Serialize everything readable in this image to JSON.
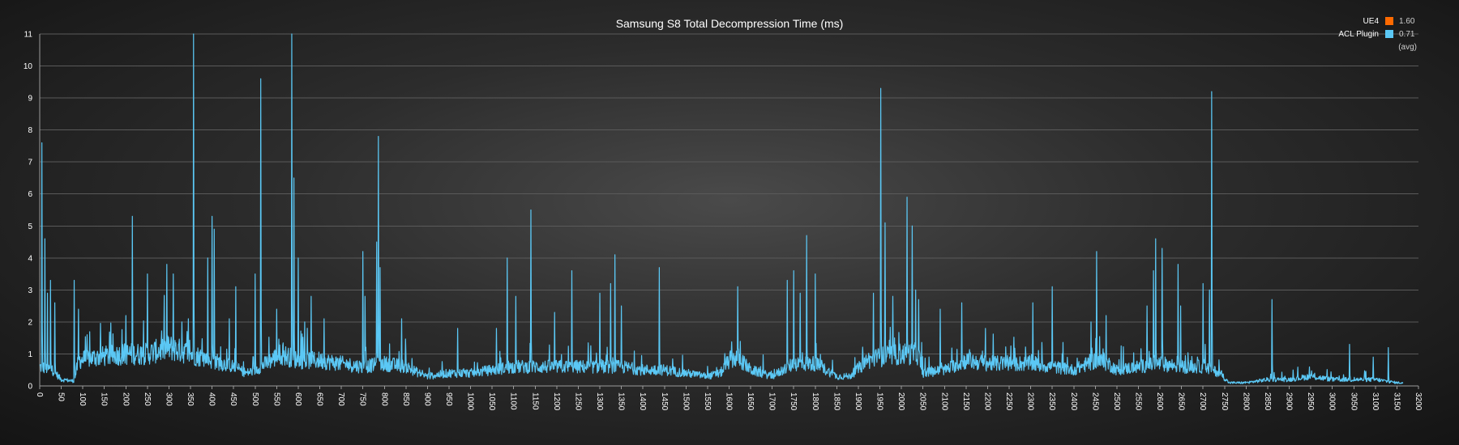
{
  "chart_data": {
    "type": "line",
    "title": "Samsung S8 Total Decompression Time (ms)",
    "xlim": [
      0,
      3200
    ],
    "ylim": [
      0,
      11
    ],
    "x_ticks": [
      0,
      50,
      100,
      150,
      200,
      250,
      300,
      350,
      400,
      450,
      500,
      550,
      600,
      650,
      700,
      750,
      800,
      850,
      900,
      950,
      1000,
      1050,
      1100,
      1150,
      1200,
      1250,
      1300,
      1350,
      1400,
      1450,
      1500,
      1550,
      1600,
      1650,
      1700,
      1750,
      1800,
      1850,
      1900,
      1950,
      2000,
      2050,
      2100,
      2150,
      2200,
      2250,
      2300,
      2350,
      2400,
      2450,
      2500,
      2550,
      2600,
      2650,
      2700,
      2750,
      2800,
      2850,
      2900,
      2950,
      3000,
      3050,
      3100,
      3150,
      3200
    ],
    "y_ticks": [
      0,
      1,
      2,
      3,
      4,
      5,
      6,
      7,
      8,
      9,
      10,
      11
    ],
    "grid": true,
    "legend_position": "top-right",
    "legend": [
      {
        "name": "UE4",
        "avg": "1.60",
        "color": "#ff6a00"
      },
      {
        "name": "ACL Plugin",
        "avg": "0.71",
        "color": "#5bc8f5"
      }
    ],
    "legend_note": "(avg)",
    "series": [
      {
        "name": "ACL Plugin",
        "color": "#5bc8f5",
        "num_points": 3165,
        "baseline": [
          [
            0,
            0.6
          ],
          [
            30,
            0.5
          ],
          [
            50,
            0.2
          ],
          [
            80,
            0.15
          ],
          [
            90,
            0.8
          ],
          [
            130,
            0.9
          ],
          [
            200,
            1.0
          ],
          [
            250,
            1.0
          ],
          [
            300,
            1.2
          ],
          [
            350,
            1.0
          ],
          [
            400,
            0.8
          ],
          [
            450,
            0.6
          ],
          [
            480,
            0.4
          ],
          [
            500,
            0.5
          ],
          [
            560,
            1.0
          ],
          [
            600,
            0.8
          ],
          [
            650,
            0.8
          ],
          [
            700,
            0.7
          ],
          [
            750,
            0.6
          ],
          [
            800,
            0.7
          ],
          [
            850,
            0.6
          ],
          [
            880,
            0.4
          ],
          [
            900,
            0.3
          ],
          [
            950,
            0.4
          ],
          [
            1000,
            0.4
          ],
          [
            1050,
            0.5
          ],
          [
            1100,
            0.6
          ],
          [
            1150,
            0.6
          ],
          [
            1200,
            0.6
          ],
          [
            1250,
            0.6
          ],
          [
            1300,
            0.6
          ],
          [
            1350,
            0.6
          ],
          [
            1400,
            0.5
          ],
          [
            1450,
            0.5
          ],
          [
            1500,
            0.4
          ],
          [
            1550,
            0.3
          ],
          [
            1580,
            0.4
          ],
          [
            1600,
            0.8
          ],
          [
            1620,
            0.9
          ],
          [
            1650,
            0.5
          ],
          [
            1700,
            0.3
          ],
          [
            1750,
            0.7
          ],
          [
            1800,
            0.7
          ],
          [
            1850,
            0.3
          ],
          [
            1880,
            0.3
          ],
          [
            1920,
            0.8
          ],
          [
            1950,
            0.9
          ],
          [
            2000,
            1.0
          ],
          [
            2040,
            1.0
          ],
          [
            2050,
            0.4
          ],
          [
            2100,
            0.5
          ],
          [
            2150,
            0.8
          ],
          [
            2200,
            0.7
          ],
          [
            2250,
            0.7
          ],
          [
            2300,
            0.7
          ],
          [
            2350,
            0.6
          ],
          [
            2400,
            0.5
          ],
          [
            2450,
            0.8
          ],
          [
            2480,
            0.7
          ],
          [
            2500,
            0.5
          ],
          [
            2550,
            0.6
          ],
          [
            2600,
            0.7
          ],
          [
            2650,
            0.6
          ],
          [
            2700,
            0.6
          ],
          [
            2740,
            0.4
          ],
          [
            2760,
            0.1
          ],
          [
            2800,
            0.1
          ],
          [
            2850,
            0.2
          ],
          [
            2900,
            0.2
          ],
          [
            2950,
            0.3
          ],
          [
            3000,
            0.2
          ],
          [
            3050,
            0.2
          ],
          [
            3100,
            0.2
          ],
          [
            3150,
            0.1
          ],
          [
            3165,
            0.1
          ]
        ],
        "peaks": [
          [
            5,
            7.6
          ],
          [
            12,
            4.6
          ],
          [
            18,
            2.9
          ],
          [
            25,
            3.3
          ],
          [
            35,
            2.6
          ],
          [
            80,
            3.3
          ],
          [
            90,
            2.4
          ],
          [
            110,
            1.6
          ],
          [
            200,
            2.2
          ],
          [
            215,
            5.3
          ],
          [
            250,
            3.5
          ],
          [
            295,
            3.8
          ],
          [
            310,
            3.5
          ],
          [
            330,
            2.0
          ],
          [
            345,
            2.1
          ],
          [
            357,
            11.0
          ],
          [
            390,
            4.0
          ],
          [
            400,
            5.3
          ],
          [
            405,
            4.9
          ],
          [
            440,
            2.1
          ],
          [
            455,
            3.1
          ],
          [
            500,
            3.5
          ],
          [
            513,
            9.6
          ],
          [
            550,
            2.4
          ],
          [
            585,
            11.0
          ],
          [
            590,
            6.5
          ],
          [
            600,
            4.0
          ],
          [
            615,
            2.0
          ],
          [
            630,
            2.8
          ],
          [
            660,
            2.1
          ],
          [
            750,
            4.2
          ],
          [
            755,
            2.8
          ],
          [
            782,
            4.5
          ],
          [
            786,
            7.8
          ],
          [
            790,
            3.7
          ],
          [
            840,
            2.1
          ],
          [
            970,
            1.8
          ],
          [
            1060,
            1.8
          ],
          [
            1085,
            4.0
          ],
          [
            1105,
            2.8
          ],
          [
            1140,
            5.5
          ],
          [
            1195,
            2.3
          ],
          [
            1235,
            3.6
          ],
          [
            1300,
            2.9
          ],
          [
            1325,
            3.2
          ],
          [
            1335,
            4.1
          ],
          [
            1350,
            2.5
          ],
          [
            1438,
            3.7
          ],
          [
            1620,
            3.1
          ],
          [
            1735,
            3.3
          ],
          [
            1750,
            3.6
          ],
          [
            1765,
            2.9
          ],
          [
            1780,
            4.7
          ],
          [
            1800,
            3.5
          ],
          [
            1935,
            2.9
          ],
          [
            1952,
            9.3
          ],
          [
            1962,
            5.1
          ],
          [
            1980,
            2.8
          ],
          [
            2013,
            5.9
          ],
          [
            2025,
            5.0
          ],
          [
            2033,
            3.0
          ],
          [
            2040,
            2.7
          ],
          [
            2090,
            2.4
          ],
          [
            2140,
            2.6
          ],
          [
            2195,
            1.8
          ],
          [
            2305,
            2.6
          ],
          [
            2350,
            3.1
          ],
          [
            2440,
            2.0
          ],
          [
            2453,
            4.2
          ],
          [
            2475,
            2.2
          ],
          [
            2570,
            2.5
          ],
          [
            2585,
            3.6
          ],
          [
            2590,
            4.6
          ],
          [
            2605,
            4.3
          ],
          [
            2642,
            3.8
          ],
          [
            2648,
            2.5
          ],
          [
            2700,
            3.2
          ],
          [
            2715,
            3.0
          ],
          [
            2720,
            9.2
          ],
          [
            2860,
            2.7
          ],
          [
            3040,
            1.3
          ],
          [
            3095,
            0.9
          ],
          [
            3130,
            1.2
          ]
        ]
      }
    ]
  }
}
